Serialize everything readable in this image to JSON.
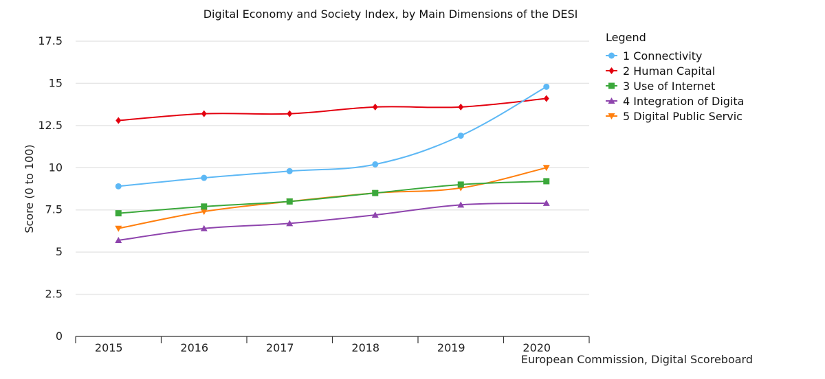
{
  "chart_data": {
    "type": "line",
    "title": "Digital Economy and Society Index, by Main Dimensions of the DESI",
    "xlabel": "",
    "ylabel": "Score (0 to 100)",
    "source": "European Commission, Digital Scoreboard",
    "categories": [
      "2015",
      "2016",
      "2017",
      "2018",
      "2019",
      "2020"
    ],
    "ylim": [
      0,
      17.5
    ],
    "yticks": [
      0,
      2.5,
      5,
      7.5,
      10,
      12.5,
      15,
      17.5
    ],
    "ytick_labels": [
      "0",
      "2.5",
      "5",
      "7.5",
      "10",
      "12.5",
      "15",
      "17.5"
    ],
    "grid": true,
    "legend_title": "Legend",
    "legend_position": "right",
    "series": [
      {
        "name": "1 Connectivity",
        "color": "#5DB8F5",
        "marker": "circle",
        "values": [
          8.9,
          9.4,
          9.8,
          10.2,
          11.9,
          14.8
        ]
      },
      {
        "name": "2 Human Capital",
        "color": "#E3000F",
        "marker": "diamond",
        "values": [
          12.8,
          13.2,
          13.2,
          13.6,
          13.6,
          14.1
        ]
      },
      {
        "name": "3 Use of Internet",
        "color": "#3BA83B",
        "marker": "square",
        "values": [
          7.3,
          7.7,
          8.0,
          8.5,
          9.0,
          9.2
        ]
      },
      {
        "name": "4 Integration of Digita",
        "color": "#8E44AD",
        "marker": "triangle",
        "values": [
          5.7,
          6.4,
          6.7,
          7.2,
          7.8,
          7.9
        ]
      },
      {
        "name": "5 Digital Public Servic",
        "color": "#FF7F0E",
        "marker": "triangle-down",
        "values": [
          6.4,
          7.4,
          8.0,
          8.5,
          8.8,
          10.0
        ]
      }
    ]
  }
}
